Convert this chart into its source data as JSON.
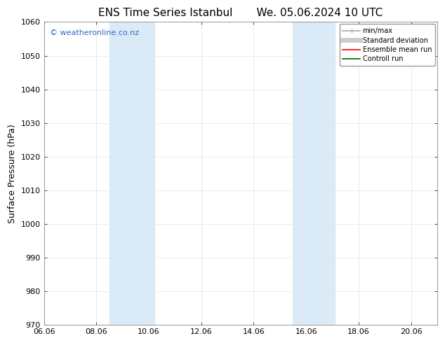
{
  "title": "ENS Time Series Istanbul       We. 05.06.2024 10 UTC",
  "ylabel": "Surface Pressure (hPa)",
  "ylim": [
    970,
    1060
  ],
  "yticks": [
    970,
    980,
    990,
    1000,
    1010,
    1020,
    1030,
    1040,
    1050,
    1060
  ],
  "xlim_start": 0.0,
  "xlim_end": 15.0,
  "xtick_labels": [
    "06.06",
    "08.06",
    "10.06",
    "12.06",
    "14.06",
    "16.06",
    "18.06",
    "20.06"
  ],
  "xtick_positions": [
    0.0,
    2.0,
    4.0,
    6.0,
    8.0,
    10.0,
    12.0,
    14.0
  ],
  "shaded_bands": [
    {
      "x_start": 2.5,
      "x_end": 3.0,
      "color": "#daeaf7"
    },
    {
      "x_start": 3.0,
      "x_end": 4.2,
      "color": "#daeaf7"
    },
    {
      "x_start": 9.5,
      "x_end": 10.0,
      "color": "#daeaf7"
    },
    {
      "x_start": 10.0,
      "x_end": 11.1,
      "color": "#daeaf7"
    }
  ],
  "watermark_text": "© weatheronline.co.nz",
  "watermark_color": "#3366cc",
  "background_color": "#ffffff",
  "grid_color": "#cccccc",
  "legend_entries": [
    {
      "label": "min/max",
      "color": "#aaaaaa",
      "lw": 1.2
    },
    {
      "label": "Standard deviation",
      "color": "#cccccc",
      "lw": 5
    },
    {
      "label": "Ensemble mean run",
      "color": "#ff0000",
      "lw": 1.2
    },
    {
      "label": "Controll run",
      "color": "#006600",
      "lw": 1.2
    }
  ],
  "title_fontsize": 11,
  "axis_label_fontsize": 9,
  "tick_fontsize": 8,
  "legend_fontsize": 7
}
